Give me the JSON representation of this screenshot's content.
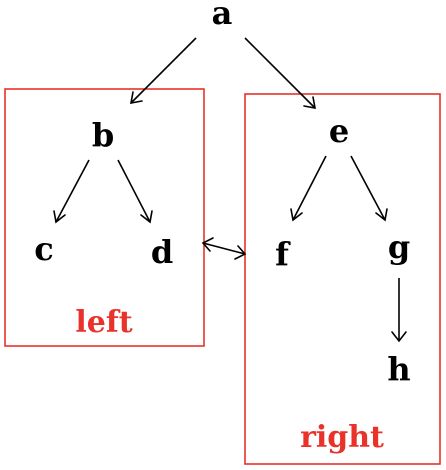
{
  "nodes": {
    "a": "a",
    "b": "b",
    "c": "c",
    "d": "d",
    "e": "e",
    "f": "f",
    "g": "g",
    "h": "h"
  },
  "groups": {
    "left": {
      "label": "left"
    },
    "right": {
      "label": "right"
    }
  },
  "edges": [
    {
      "from": "a",
      "to": "b"
    },
    {
      "from": "a",
      "to": "e"
    },
    {
      "from": "b",
      "to": "c"
    },
    {
      "from": "b",
      "to": "d"
    },
    {
      "from": "e",
      "to": "f"
    },
    {
      "from": "e",
      "to": "g"
    },
    {
      "from": "g",
      "to": "h"
    },
    {
      "from": "d",
      "to": "f",
      "bidirectional": true
    }
  ],
  "colors": {
    "group_box": "#e8322a",
    "group_label": "#e8322a",
    "node_text": "#000000",
    "edge": "#000000"
  }
}
